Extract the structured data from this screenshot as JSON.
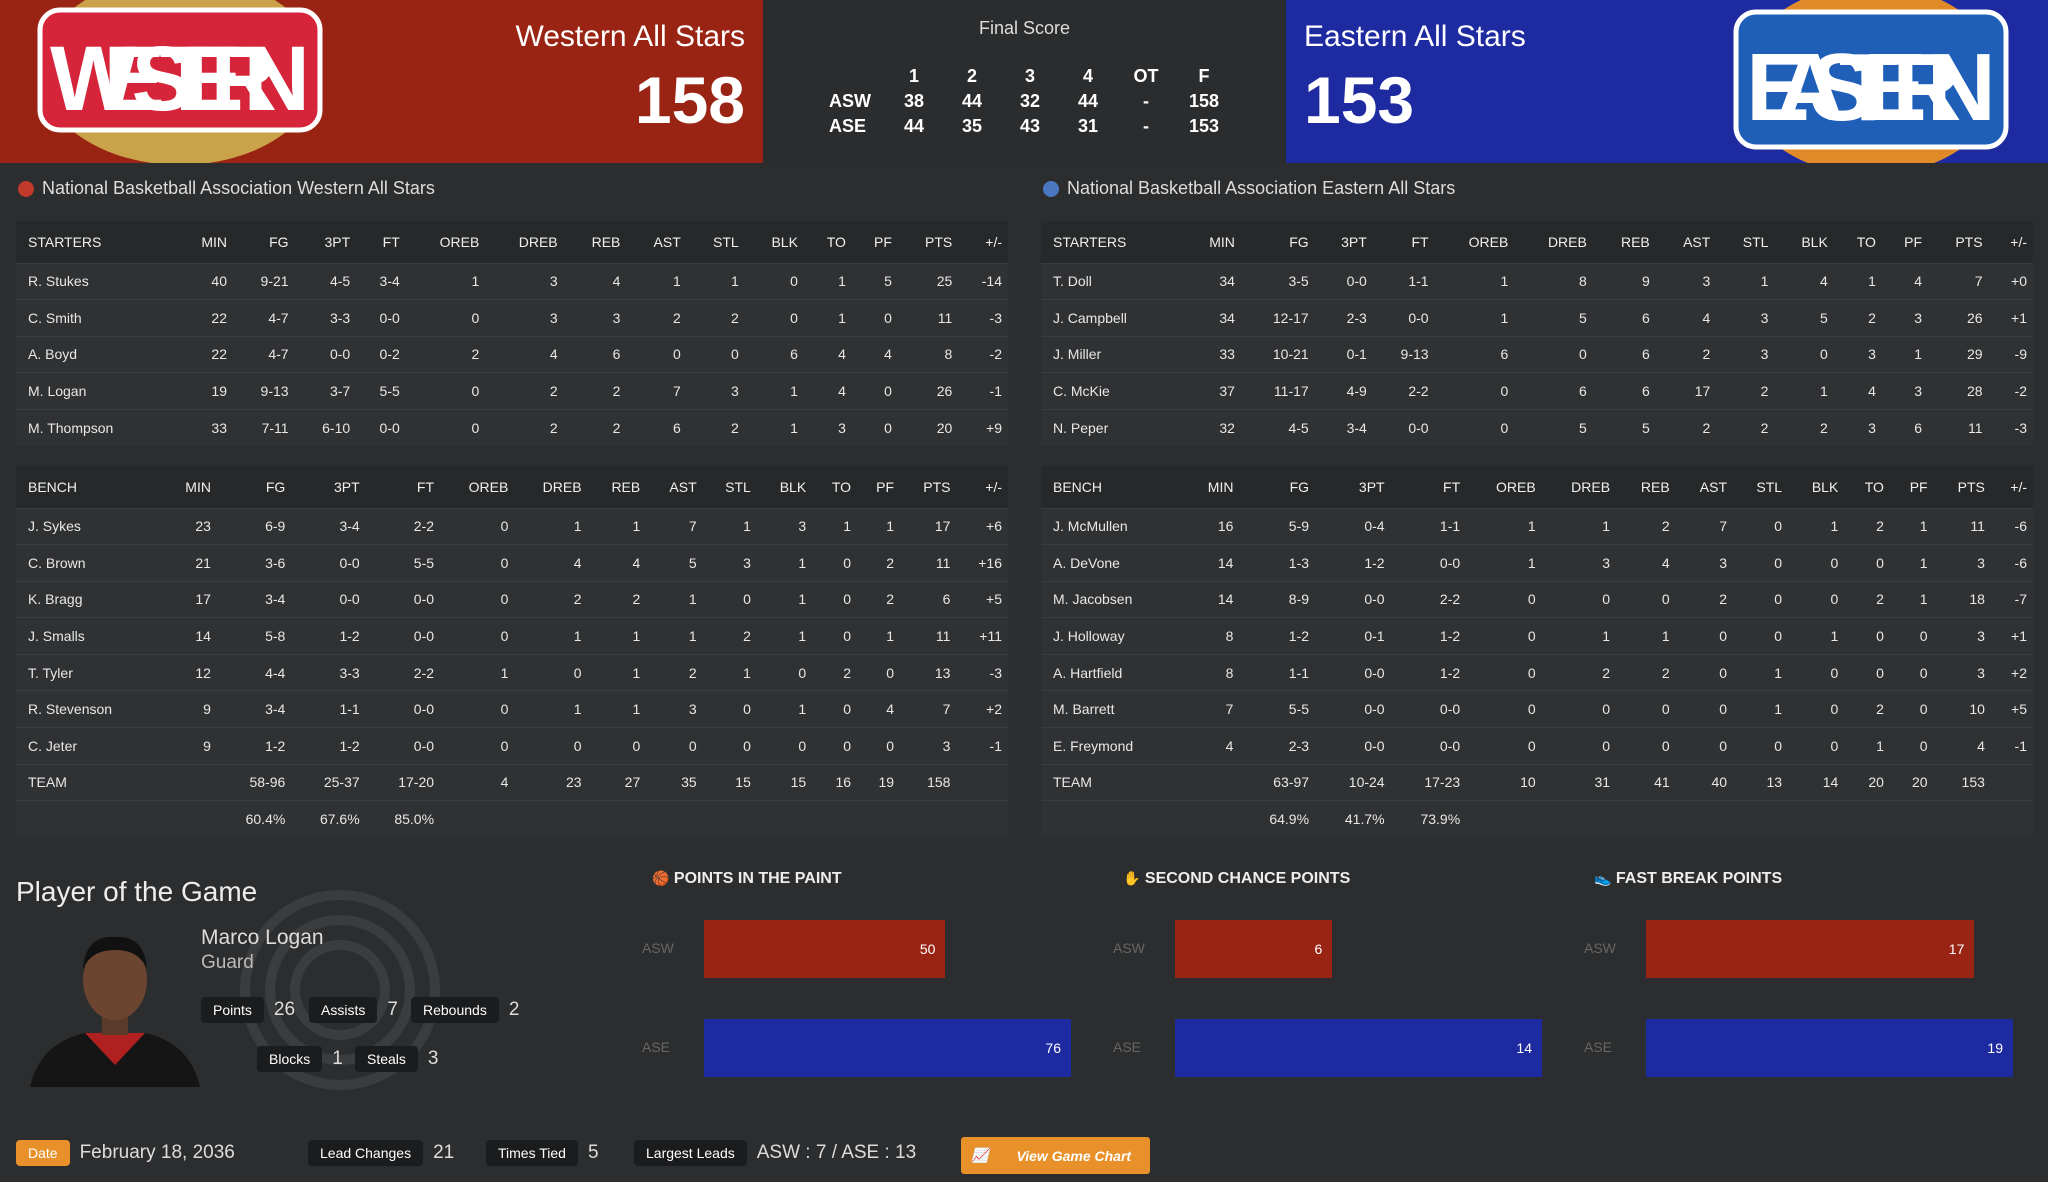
{
  "header": {
    "west": {
      "name": "Western All Stars",
      "score": "158",
      "logo_text": "WESTERN",
      "color": "#9a2413"
    },
    "east": {
      "name": "Eastern All Stars",
      "score": "153",
      "logo_text": "EASTERN",
      "color": "#1d2aa0"
    },
    "final_label": "Final Score",
    "linescore": {
      "cols": [
        "1",
        "2",
        "3",
        "4",
        "OT",
        "F"
      ],
      "rows": [
        {
          "team": "ASW",
          "vals": [
            "38",
            "44",
            "32",
            "44",
            "-",
            "158"
          ]
        },
        {
          "team": "ASE",
          "vals": [
            "44",
            "35",
            "43",
            "31",
            "-",
            "153"
          ]
        }
      ]
    }
  },
  "columns": [
    "MIN",
    "FG",
    "3PT",
    "FT",
    "OREB",
    "DREB",
    "REB",
    "AST",
    "STL",
    "BLK",
    "TO",
    "PF",
    "PTS",
    "+/-"
  ],
  "teams": [
    {
      "title": "National Basketball Association Western All Stars",
      "starters_label": "STARTERS",
      "bench_label": "BENCH",
      "starters": [
        [
          "R. Stukes",
          "40",
          "9-21",
          "4-5",
          "3-4",
          "1",
          "3",
          "4",
          "1",
          "1",
          "0",
          "1",
          "5",
          "25",
          "-14"
        ],
        [
          "C. Smith",
          "22",
          "4-7",
          "3-3",
          "0-0",
          "0",
          "3",
          "3",
          "2",
          "2",
          "0",
          "1",
          "0",
          "11",
          "-3"
        ],
        [
          "A. Boyd",
          "22",
          "4-7",
          "0-0",
          "0-2",
          "2",
          "4",
          "6",
          "0",
          "0",
          "6",
          "4",
          "4",
          "8",
          "-2"
        ],
        [
          "M. Logan",
          "19",
          "9-13",
          "3-7",
          "5-5",
          "0",
          "2",
          "2",
          "7",
          "3",
          "1",
          "4",
          "0",
          "26",
          "-1"
        ],
        [
          "M. Thompson",
          "33",
          "7-11",
          "6-10",
          "0-0",
          "0",
          "2",
          "2",
          "6",
          "2",
          "1",
          "3",
          "0",
          "20",
          "+9"
        ]
      ],
      "bench": [
        [
          "J. Sykes",
          "23",
          "6-9",
          "3-4",
          "2-2",
          "0",
          "1",
          "1",
          "7",
          "1",
          "3",
          "1",
          "1",
          "17",
          "+6"
        ],
        [
          "C. Brown",
          "21",
          "3-6",
          "0-0",
          "5-5",
          "0",
          "4",
          "4",
          "5",
          "3",
          "1",
          "0",
          "2",
          "11",
          "+16"
        ],
        [
          "K. Bragg",
          "17",
          "3-4",
          "0-0",
          "0-0",
          "0",
          "2",
          "2",
          "1",
          "0",
          "1",
          "0",
          "2",
          "6",
          "+5"
        ],
        [
          "J. Smalls",
          "14",
          "5-8",
          "1-2",
          "0-0",
          "0",
          "1",
          "1",
          "1",
          "2",
          "1",
          "0",
          "1",
          "11",
          "+11"
        ],
        [
          "T. Tyler",
          "12",
          "4-4",
          "3-3",
          "2-2",
          "1",
          "0",
          "1",
          "2",
          "1",
          "0",
          "2",
          "0",
          "13",
          "-3"
        ],
        [
          "R. Stevenson",
          "9",
          "3-4",
          "1-1",
          "0-0",
          "0",
          "1",
          "1",
          "3",
          "0",
          "1",
          "0",
          "4",
          "7",
          "+2"
        ],
        [
          "C. Jeter",
          "9",
          "1-2",
          "1-2",
          "0-0",
          "0",
          "0",
          "0",
          "0",
          "0",
          "0",
          "0",
          "0",
          "3",
          "-1"
        ],
        [
          "TEAM",
          "",
          "58-96",
          "25-37",
          "17-20",
          "4",
          "23",
          "27",
          "35",
          "15",
          "15",
          "16",
          "19",
          "158",
          ""
        ],
        [
          "",
          "",
          "60.4%",
          "67.6%",
          "85.0%",
          "",
          "",
          "",
          "",
          "",
          "",
          "",
          "",
          "",
          ""
        ]
      ]
    },
    {
      "title": "National Basketball Association Eastern All Stars",
      "starters_label": "STARTERS",
      "bench_label": "BENCH",
      "starters": [
        [
          "T. Doll",
          "34",
          "3-5",
          "0-0",
          "1-1",
          "1",
          "8",
          "9",
          "3",
          "1",
          "4",
          "1",
          "4",
          "7",
          "+0"
        ],
        [
          "J. Campbell",
          "34",
          "12-17",
          "2-3",
          "0-0",
          "1",
          "5",
          "6",
          "4",
          "3",
          "5",
          "2",
          "3",
          "26",
          "+1"
        ],
        [
          "J. Miller",
          "33",
          "10-21",
          "0-1",
          "9-13",
          "6",
          "0",
          "6",
          "2",
          "3",
          "0",
          "3",
          "1",
          "29",
          "-9"
        ],
        [
          "C. McKie",
          "37",
          "11-17",
          "4-9",
          "2-2",
          "0",
          "6",
          "6",
          "17",
          "2",
          "1",
          "4",
          "3",
          "28",
          "-2"
        ],
        [
          "N. Peper",
          "32",
          "4-5",
          "3-4",
          "0-0",
          "0",
          "5",
          "5",
          "2",
          "2",
          "2",
          "3",
          "6",
          "11",
          "-3"
        ]
      ],
      "bench": [
        [
          "J. McMullen",
          "16",
          "5-9",
          "0-4",
          "1-1",
          "1",
          "1",
          "2",
          "7",
          "0",
          "1",
          "2",
          "1",
          "11",
          "-6"
        ],
        [
          "A. DeVone",
          "14",
          "1-3",
          "1-2",
          "0-0",
          "1",
          "3",
          "4",
          "3",
          "0",
          "0",
          "0",
          "1",
          "3",
          "-6"
        ],
        [
          "M. Jacobsen",
          "14",
          "8-9",
          "0-0",
          "2-2",
          "0",
          "0",
          "0",
          "2",
          "0",
          "0",
          "2",
          "1",
          "18",
          "-7"
        ],
        [
          "J. Holloway",
          "8",
          "1-2",
          "0-1",
          "1-2",
          "0",
          "1",
          "1",
          "0",
          "0",
          "1",
          "0",
          "0",
          "3",
          "+1"
        ],
        [
          "A. Hartfield",
          "8",
          "1-1",
          "0-0",
          "1-2",
          "0",
          "2",
          "2",
          "0",
          "1",
          "0",
          "0",
          "0",
          "3",
          "+2"
        ],
        [
          "M. Barrett",
          "7",
          "5-5",
          "0-0",
          "0-0",
          "0",
          "0",
          "0",
          "0",
          "1",
          "0",
          "2",
          "0",
          "10",
          "+5"
        ],
        [
          "E. Freymond",
          "4",
          "2-3",
          "0-0",
          "0-0",
          "0",
          "0",
          "0",
          "0",
          "0",
          "0",
          "1",
          "0",
          "4",
          "-1"
        ],
        [
          "TEAM",
          "",
          "63-97",
          "10-24",
          "17-23",
          "10",
          "31",
          "41",
          "40",
          "13",
          "14",
          "20",
          "20",
          "153",
          ""
        ],
        [
          "",
          "",
          "64.9%",
          "41.7%",
          "73.9%",
          "",
          "",
          "",
          "",
          "",
          "",
          "",
          "",
          "",
          ""
        ]
      ]
    }
  ],
  "potg": {
    "title": "Player of the Game",
    "name": "Marco Logan",
    "position": "Guard",
    "stats": [
      {
        "label": "Points",
        "value": "26"
      },
      {
        "label": "Assists",
        "value": "7"
      },
      {
        "label": "Rebounds",
        "value": "2"
      },
      {
        "label": "Blocks",
        "value": "1"
      },
      {
        "label": "Steals",
        "value": "3"
      }
    ]
  },
  "charts": [
    {
      "title": "POINTS IN THE PAINT",
      "icon": "hoop-icon",
      "asw": 50,
      "ase": 76
    },
    {
      "title": "SECOND CHANCE POINTS",
      "icon": "hand-icon",
      "asw": 6,
      "ase": 14
    },
    {
      "title": "FAST BREAK POINTS",
      "icon": "sneaker-icon",
      "asw": 17,
      "ase": 19
    }
  ],
  "bar_labels": {
    "asw": "ASW",
    "ase": "ASE"
  },
  "footer": {
    "date_label": "Date",
    "date": "February 18, 2036",
    "lead_changes_label": "Lead Changes",
    "lead_changes": "21",
    "times_tied_label": "Times Tied",
    "times_tied": "5",
    "largest_leads_label": "Largest Leads",
    "largest_leads": "ASW : 7 / ASE : 13",
    "button": "View Game Chart"
  }
}
